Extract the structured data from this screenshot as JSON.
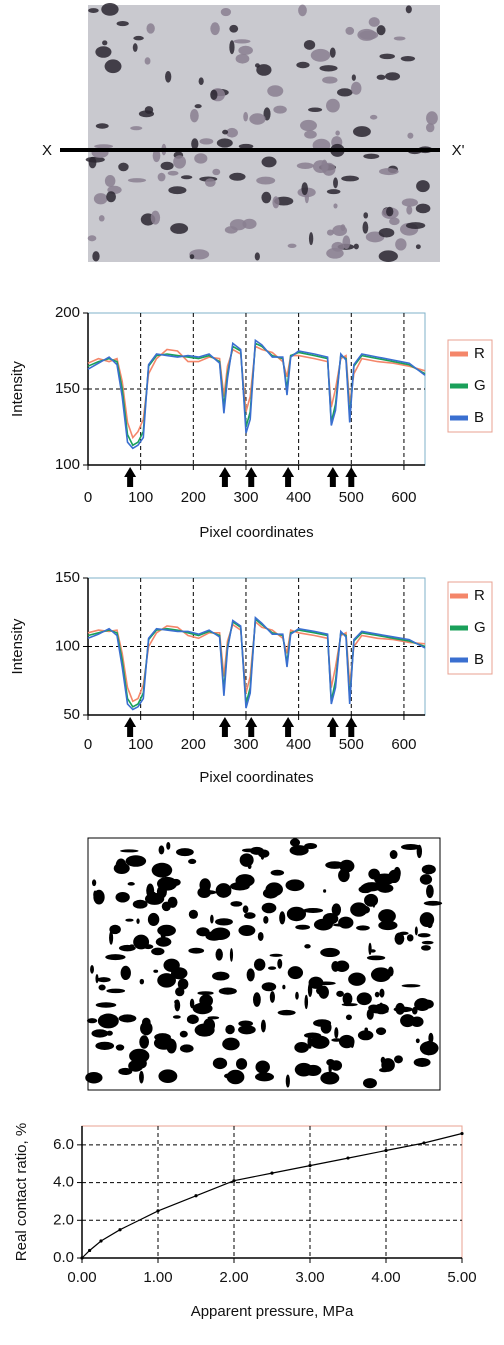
{
  "photo": {
    "left_label": "X",
    "right_label": "X'"
  },
  "chart_data": [
    {
      "type": "line",
      "y_label": "Intensity",
      "x_label": "Pixel coordinates",
      "xlim": [
        0,
        640
      ],
      "xticks": [
        0,
        100,
        200,
        300,
        400,
        500,
        600
      ],
      "ylim": [
        100,
        200
      ],
      "yticks": [
        100,
        150,
        200
      ],
      "grid": true,
      "legend": "right",
      "arrows_x": [
        80,
        260,
        310,
        380,
        465,
        500
      ],
      "x": [
        0,
        20,
        40,
        55,
        65,
        75,
        85,
        95,
        105,
        115,
        130,
        150,
        170,
        190,
        210,
        230,
        250,
        258,
        265,
        275,
        290,
        300,
        308,
        318,
        330,
        350,
        370,
        378,
        385,
        400,
        430,
        455,
        462,
        470,
        480,
        490,
        497,
        505,
        520,
        550,
        580,
        610,
        640
      ],
      "series": [
        {
          "name": "R",
          "color": "#f4866a",
          "values": [
            167,
            170,
            168,
            170,
            155,
            128,
            118,
            122,
            130,
            160,
            170,
            176,
            175,
            168,
            168,
            171,
            170,
            145,
            165,
            176,
            173,
            135,
            145,
            178,
            176,
            174,
            168,
            158,
            172,
            172,
            170,
            168,
            138,
            150,
            170,
            172,
            140,
            160,
            170,
            168,
            167,
            165,
            162
          ]
        },
        {
          "name": "G",
          "color": "#1aa05a",
          "values": [
            165,
            168,
            170,
            168,
            150,
            120,
            113,
            115,
            122,
            165,
            172,
            173,
            172,
            171,
            170,
            172,
            168,
            138,
            160,
            178,
            175,
            125,
            135,
            180,
            178,
            172,
            170,
            150,
            172,
            174,
            172,
            170,
            128,
            140,
            172,
            170,
            132,
            165,
            172,
            170,
            168,
            166,
            160
          ]
        },
        {
          "name": "B",
          "color": "#3a6fd0",
          "values": [
            163,
            167,
            171,
            166,
            145,
            115,
            111,
            113,
            118,
            166,
            173,
            172,
            171,
            172,
            171,
            173,
            167,
            134,
            157,
            180,
            176,
            121,
            130,
            182,
            179,
            171,
            171,
            146,
            171,
            175,
            173,
            171,
            126,
            136,
            173,
            169,
            128,
            166,
            173,
            171,
            169,
            167,
            159
          ]
        }
      ]
    },
    {
      "type": "line",
      "y_label": "Intensity",
      "x_label": "Pixel coordinates",
      "xlim": [
        0,
        640
      ],
      "xticks": [
        0,
        100,
        200,
        300,
        400,
        500,
        600
      ],
      "ylim": [
        50,
        150
      ],
      "yticks": [
        50,
        100,
        150
      ],
      "grid": true,
      "legend": "right",
      "arrows_x": [
        80,
        260,
        310,
        380,
        465,
        500
      ],
      "x": [
        0,
        20,
        40,
        55,
        65,
        75,
        85,
        95,
        105,
        115,
        130,
        150,
        170,
        190,
        210,
        230,
        250,
        258,
        265,
        275,
        290,
        300,
        308,
        318,
        330,
        350,
        370,
        378,
        385,
        400,
        430,
        455,
        462,
        470,
        480,
        490,
        497,
        505,
        520,
        550,
        580,
        610,
        640
      ],
      "series": [
        {
          "name": "R",
          "color": "#f4866a",
          "values": [
            110,
            112,
            111,
            112,
            95,
            70,
            60,
            62,
            72,
            100,
            110,
            115,
            114,
            108,
            106,
            110,
            110,
            78,
            104,
            116,
            112,
            66,
            78,
            118,
            114,
            112,
            106,
            95,
            112,
            110,
            108,
            106,
            70,
            85,
            108,
            110,
            72,
            100,
            108,
            106,
            105,
            103,
            102
          ]
        },
        {
          "name": "G",
          "color": "#1aa05a",
          "values": [
            108,
            110,
            112,
            110,
            90,
            62,
            56,
            58,
            66,
            105,
            112,
            113,
            112,
            110,
            108,
            111,
            108,
            68,
            100,
            118,
            114,
            58,
            70,
            120,
            116,
            110,
            108,
            88,
            110,
            112,
            110,
            108,
            60,
            75,
            110,
            108,
            62,
            104,
            110,
            108,
            106,
            104,
            100
          ]
        },
        {
          "name": "B",
          "color": "#3a6fd0",
          "values": [
            106,
            109,
            113,
            108,
            85,
            58,
            54,
            56,
            62,
            106,
            113,
            112,
            111,
            111,
            109,
            112,
            107,
            64,
            98,
            119,
            115,
            55,
            66,
            121,
            117,
            109,
            109,
            85,
            109,
            113,
            111,
            109,
            58,
            70,
            111,
            107,
            58,
            105,
            111,
            109,
            107,
            105,
            99
          ]
        }
      ]
    },
    {
      "type": "line",
      "y_label": "Real contact ratio,  %",
      "x_label": "Apparent pressure,  MPa",
      "xlim": [
        0,
        5
      ],
      "xticks": [
        {
          "value": 0,
          "label": "0.00"
        },
        {
          "value": 1,
          "label": "1.00"
        },
        {
          "value": 2,
          "label": "2.00"
        },
        {
          "value": 3,
          "label": "3.00"
        },
        {
          "value": 4,
          "label": "4.00"
        },
        {
          "value": 5,
          "label": "5.00"
        }
      ],
      "ylim": [
        0,
        7
      ],
      "yticks": [
        {
          "value": 0,
          "label": "0.0"
        },
        {
          "value": 2,
          "label": "2.0"
        },
        {
          "value": 4,
          "label": "4.0"
        },
        {
          "value": 6,
          "label": "6.0"
        }
      ],
      "grid": true,
      "x": [
        0,
        0.1,
        0.25,
        0.5,
        1,
        1.5,
        2,
        2.5,
        3,
        3.5,
        4,
        4.5,
        5
      ],
      "series": [
        {
          "color": "#000000",
          "values": [
            0,
            0.4,
            0.9,
            1.5,
            2.5,
            3.3,
            4.1,
            4.5,
            4.9,
            5.3,
            5.7,
            6.1,
            6.6
          ]
        }
      ]
    }
  ]
}
